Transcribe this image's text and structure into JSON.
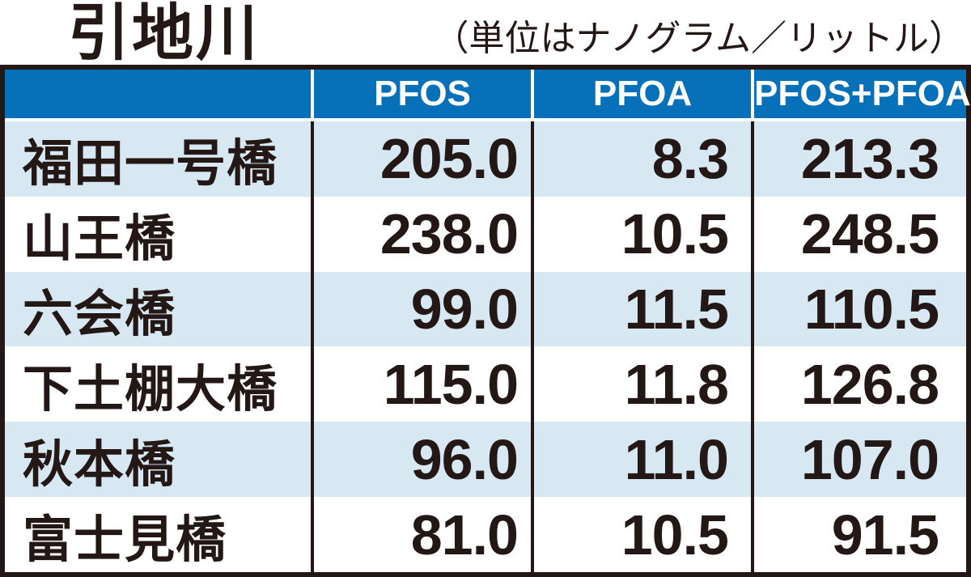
{
  "page": {
    "title": "引地川",
    "unit_note": "（単位はナノグラム／リットル）"
  },
  "colors": {
    "header_bg": "#0670b8",
    "header_text": "#ffffff",
    "alt_row_bg": "#d8e8f3",
    "text": "#231815",
    "border": "#231815"
  },
  "table": {
    "header": {
      "station": "",
      "pfos": "PFOS",
      "pfoa": "PFOA",
      "total": "PFOS+PFOA"
    },
    "rows": [
      {
        "station": "福田一号橋",
        "pfos": "205.0",
        "pfoa": "8.3",
        "total": "213.3"
      },
      {
        "station": "山王橋",
        "pfos": "238.0",
        "pfoa": "10.5",
        "total": "248.5"
      },
      {
        "station": "六会橋",
        "pfos": "99.0",
        "pfoa": "11.5",
        "total": "110.5"
      },
      {
        "station": "下土棚大橋",
        "pfos": "115.0",
        "pfoa": "11.8",
        "total": "126.8"
      },
      {
        "station": "秋本橋",
        "pfos": "96.0",
        "pfoa": "11.0",
        "total": "107.0"
      },
      {
        "station": "富士見橋",
        "pfos": "81.0",
        "pfoa": "10.5",
        "total": "91.5"
      }
    ]
  },
  "chart_data": {
    "type": "table",
    "title": "引地川",
    "subtitle": "（単位はナノグラム／リットル）",
    "unit": "ナノグラム／リットル",
    "columns": [
      "PFOS",
      "PFOA",
      "PFOS+PFOA"
    ],
    "row_labels": [
      "福田一号橋",
      "山王橋",
      "六会橋",
      "下土棚大橋",
      "秋本橋",
      "富士見橋"
    ],
    "series": [
      {
        "name": "PFOS",
        "values": [
          205.0,
          238.0,
          99.0,
          115.0,
          96.0,
          81.0
        ]
      },
      {
        "name": "PFOA",
        "values": [
          8.3,
          10.5,
          11.5,
          11.8,
          11.0,
          10.5
        ]
      },
      {
        "name": "PFOS+PFOA",
        "values": [
          213.3,
          248.5,
          110.5,
          126.8,
          107.0,
          91.5
        ]
      }
    ],
    "layout": {
      "row_striping": true,
      "stripe_rows": "odd rows (1st, 3rd, 5th) light blue",
      "value_alignment": "right",
      "header_style": "blue background, white bold text"
    }
  }
}
